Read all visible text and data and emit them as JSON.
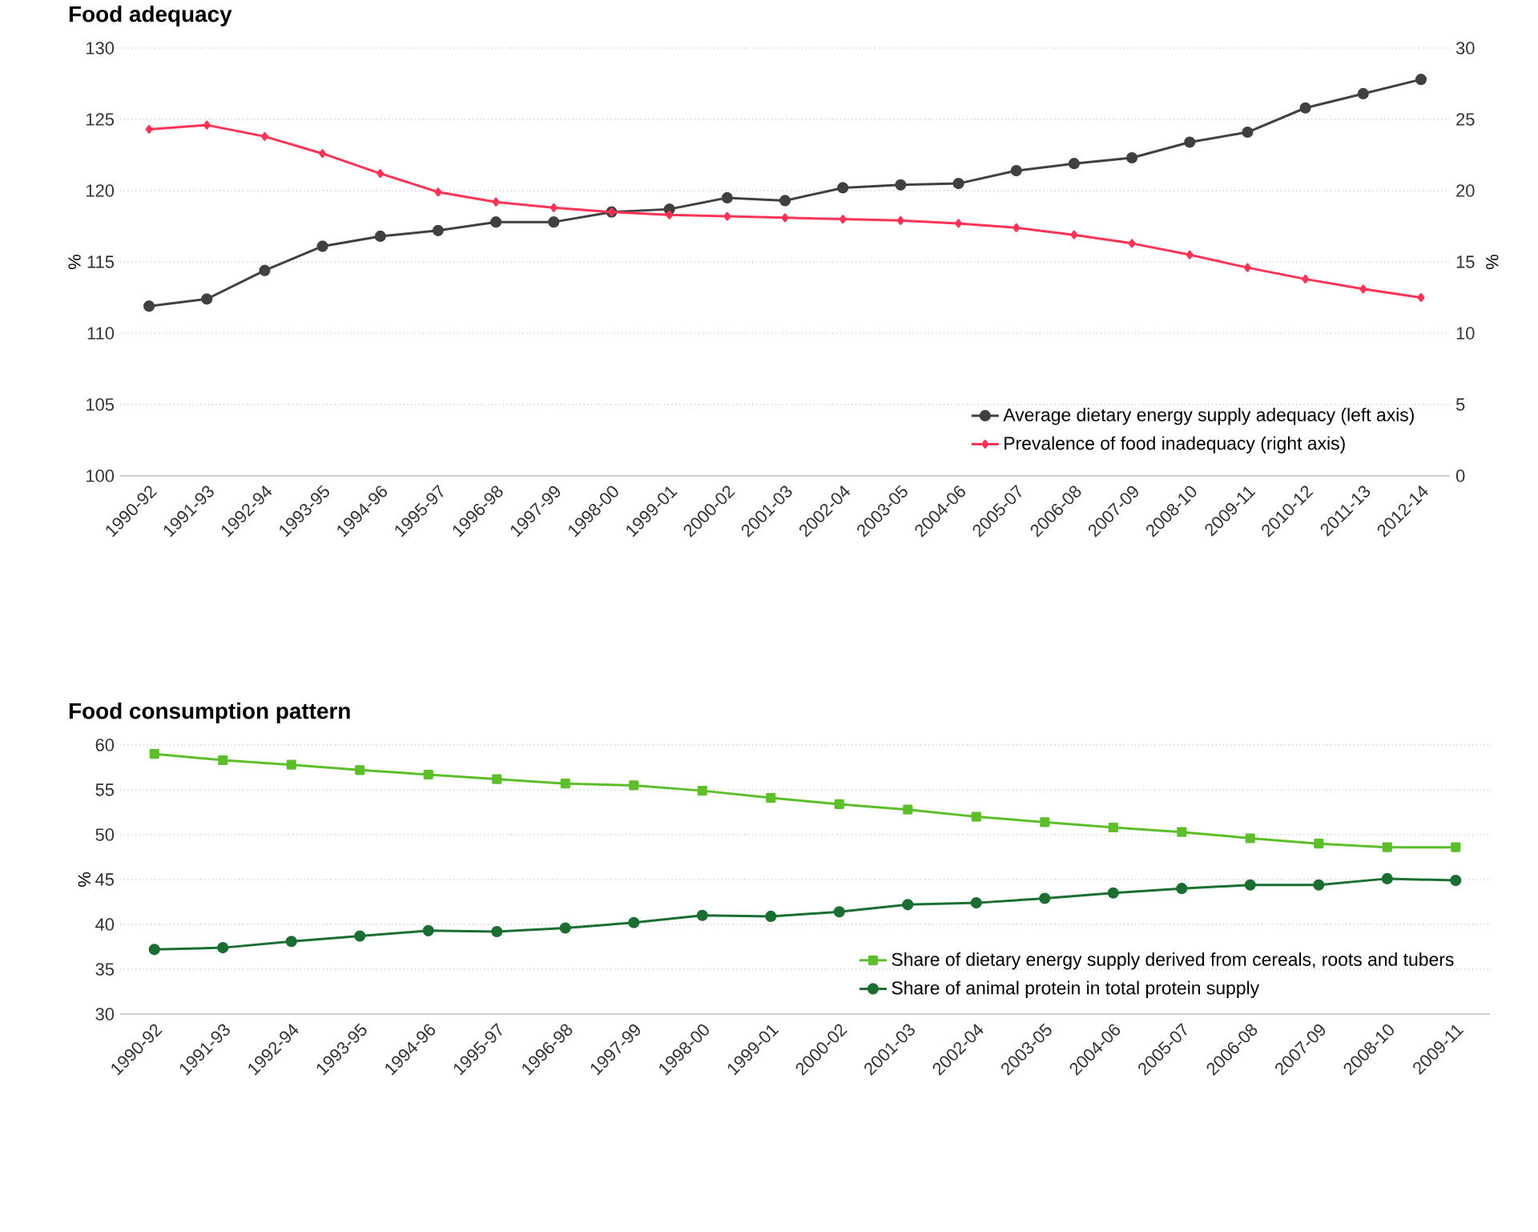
{
  "chart_data": [
    {
      "type": "line",
      "title": "Food adequacy",
      "ylabel": "%",
      "y2label": "%",
      "categories": [
        "1990-92",
        "1991-93",
        "1992-94",
        "1993-95",
        "1994-96",
        "1995-97",
        "1996-98",
        "1997-99",
        "1998-00",
        "1999-01",
        "2000-02",
        "2001-03",
        "2002-04",
        "2003-05",
        "2004-06",
        "2005-07",
        "2006-08",
        "2007-09",
        "2008-10",
        "2009-11",
        "2010-12",
        "2011-13",
        "2012-14"
      ],
      "series": [
        {
          "name": "Average dietary energy supply adequacy (left axis)",
          "color": "#404040",
          "marker": "circle",
          "values": [
            111.9,
            112.4,
            114.4,
            116.1,
            116.8,
            117.2,
            117.8,
            117.8,
            118.5,
            118.7,
            119.5,
            119.3,
            120.2,
            120.4,
            120.5,
            121.4,
            121.9,
            122.3,
            123.4,
            124.1,
            125.8,
            126.8,
            127.8
          ]
        },
        {
          "name": "Prevalence of food inadequacy (right axis)",
          "color": "#ff3355",
          "marker": "diamond",
          "axis": "y2",
          "values": [
            24.3,
            24.6,
            23.8,
            22.6,
            21.2,
            19.9,
            19.2,
            18.8,
            18.5,
            18.3,
            18.2,
            18.1,
            18.0,
            17.9,
            17.7,
            17.4,
            16.9,
            16.3,
            15.5,
            14.6,
            13.8,
            13.1,
            12.5
          ]
        }
      ],
      "ylim": [
        100,
        130
      ],
      "yticks": [
        100,
        105,
        110,
        115,
        120,
        125,
        130
      ],
      "y2lim": [
        0,
        30
      ],
      "y2ticks": [
        0,
        5,
        10,
        15,
        20,
        25,
        30
      ],
      "grid": "y",
      "legend": "bottom right"
    },
    {
      "type": "line",
      "title": "Food consumption pattern",
      "ylabel": "%",
      "categories": [
        "1990-92",
        "1991-93",
        "1992-94",
        "1993-95",
        "1994-96",
        "1995-97",
        "1996-98",
        "1997-99",
        "1998-00",
        "1999-01",
        "2000-02",
        "2001-03",
        "2002-04",
        "2003-05",
        "2004-06",
        "2005-07",
        "2006-08",
        "2007-09",
        "2008-10",
        "2009-11"
      ],
      "series": [
        {
          "name": "Share of dietary energy supply derived from cereals, roots and tubers",
          "color": "#5cbf2a",
          "marker": "square",
          "values": [
            59.0,
            58.3,
            57.8,
            57.2,
            56.7,
            56.2,
            55.7,
            55.5,
            54.9,
            54.1,
            53.4,
            52.8,
            52.0,
            51.4,
            50.8,
            50.3,
            49.6,
            49.0,
            48.6,
            48.6
          ]
        },
        {
          "name": "Share of animal protein in total protein supply",
          "color": "#1a6e32",
          "marker": "circle",
          "values": [
            37.2,
            37.4,
            38.1,
            38.7,
            39.3,
            39.2,
            39.6,
            40.2,
            41.0,
            40.9,
            41.4,
            42.2,
            42.4,
            42.9,
            43.5,
            44.0,
            44.4,
            44.4,
            45.1,
            44.9
          ]
        }
      ],
      "ylim": [
        30,
        60
      ],
      "yticks": [
        30,
        35,
        40,
        45,
        50,
        55,
        60
      ],
      "grid": "y",
      "legend": "bottom right"
    }
  ]
}
